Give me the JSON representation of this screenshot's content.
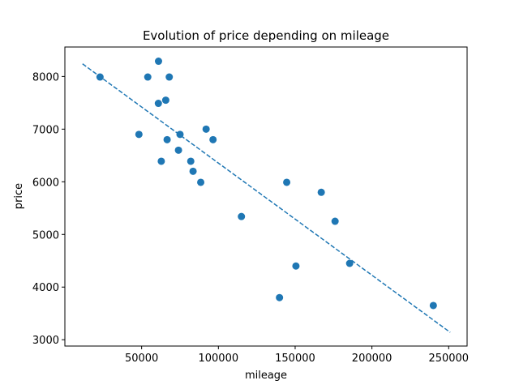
{
  "chart_data": {
    "type": "scatter",
    "title": "Evolution of price depending on mileage",
    "xlabel": "mileage",
    "ylabel": "price",
    "xlim": [
      0,
      262000
    ],
    "ylim": [
      2880,
      8560
    ],
    "xticks": [
      50000,
      100000,
      150000,
      200000,
      250000
    ],
    "yticks": [
      3000,
      4000,
      5000,
      6000,
      7000,
      8000
    ],
    "grid": false,
    "series": [
      {
        "type": "scatter",
        "color": "#1f77b4",
        "points": [
          {
            "x": 22899,
            "y": 7990
          },
          {
            "x": 48235,
            "y": 6900
          },
          {
            "x": 54000,
            "y": 7990
          },
          {
            "x": 61000,
            "y": 8290
          },
          {
            "x": 60900,
            "y": 7490
          },
          {
            "x": 62800,
            "y": 6390
          },
          {
            "x": 65700,
            "y": 7550
          },
          {
            "x": 66600,
            "y": 6800
          },
          {
            "x": 68000,
            "y": 7990
          },
          {
            "x": 74000,
            "y": 6600
          },
          {
            "x": 75000,
            "y": 6900
          },
          {
            "x": 82000,
            "y": 6390
          },
          {
            "x": 83500,
            "y": 6200
          },
          {
            "x": 88500,
            "y": 5990
          },
          {
            "x": 92000,
            "y": 7000
          },
          {
            "x": 96500,
            "y": 6800
          },
          {
            "x": 115000,
            "y": 5340
          },
          {
            "x": 139800,
            "y": 3800
          },
          {
            "x": 144500,
            "y": 5990
          },
          {
            "x": 150500,
            "y": 4400
          },
          {
            "x": 167000,
            "y": 5800
          },
          {
            "x": 176000,
            "y": 5250
          },
          {
            "x": 185500,
            "y": 4450
          },
          {
            "x": 240000,
            "y": 3650
          }
        ]
      },
      {
        "type": "line",
        "style": "dashed",
        "color": "#1f77b4",
        "points": [
          {
            "x": 11500,
            "y": 8240
          },
          {
            "x": 251000,
            "y": 3140
          }
        ]
      }
    ]
  }
}
